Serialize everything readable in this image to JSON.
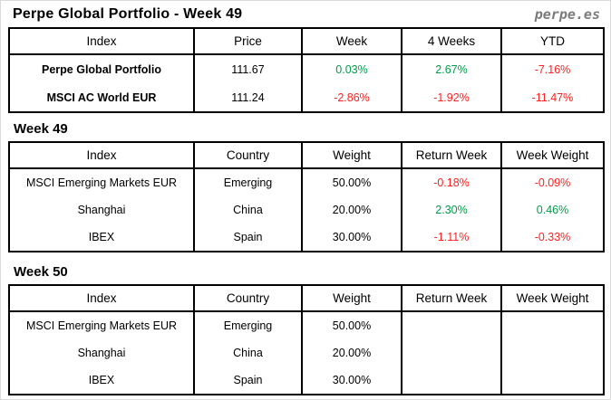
{
  "header": {
    "title": "Perpe Global Portfolio - Week 49",
    "logo": "perpe.es"
  },
  "colors": {
    "positive": "#009b48",
    "negative": "#ff1f1f"
  },
  "summary_table": {
    "headers": [
      "Index",
      "Price",
      "Week",
      "4 Weeks",
      "YTD"
    ],
    "rows": [
      {
        "index": "Perpe Global Portfolio",
        "price": "111.67",
        "week": "0.03%",
        "week_trend": "positive",
        "four_weeks": "2.67%",
        "four_weeks_trend": "positive",
        "ytd": "-7.16%",
        "ytd_trend": "negative"
      },
      {
        "index": "MSCI AC World EUR",
        "price": "111.24",
        "week": "-2.86%",
        "week_trend": "negative",
        "four_weeks": "-1.92%",
        "four_weeks_trend": "negative",
        "ytd": "-11.47%",
        "ytd_trend": "negative"
      }
    ]
  },
  "week49": {
    "heading": "Week 49",
    "headers": [
      "Index",
      "Country",
      "Weight",
      "Return Week",
      "Week Weight"
    ],
    "rows": [
      {
        "index": "MSCI Emerging Markets EUR",
        "country": "Emerging",
        "weight": "50.00%",
        "return_week": "-0.18%",
        "return_week_trend": "negative",
        "week_weight": "-0.09%",
        "week_weight_trend": "negative"
      },
      {
        "index": "Shanghai",
        "country": "China",
        "weight": "20.00%",
        "return_week": "2.30%",
        "return_week_trend": "positive",
        "week_weight": "0.46%",
        "week_weight_trend": "positive"
      },
      {
        "index": "IBEX",
        "country": "Spain",
        "weight": "30.00%",
        "return_week": "-1.11%",
        "return_week_trend": "negative",
        "week_weight": "-0.33%",
        "week_weight_trend": "negative"
      }
    ]
  },
  "week50": {
    "heading": "Week 50",
    "headers": [
      "Index",
      "Country",
      "Weight",
      "Return Week",
      "Week Weight"
    ],
    "rows": [
      {
        "index": "MSCI Emerging Markets EUR",
        "country": "Emerging",
        "weight": "50.00%",
        "return_week": "",
        "week_weight": ""
      },
      {
        "index": "Shanghai",
        "country": "China",
        "weight": "20.00%",
        "return_week": "",
        "week_weight": ""
      },
      {
        "index": "IBEX",
        "country": "Spain",
        "weight": "30.00%",
        "return_week": "",
        "week_weight": ""
      }
    ]
  }
}
